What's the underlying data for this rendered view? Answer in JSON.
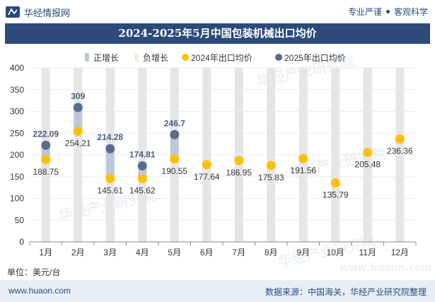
{
  "header": {
    "brand": "华经情报网",
    "tagline_left": "专业严谨",
    "tagline_right": "客观科学"
  },
  "watermark": {
    "text": "华经产业研究院",
    "url": "www.huaon.com"
  },
  "chart_data": {
    "type": "scatter",
    "title": "2024-2025年5月中国包装机械出口均价",
    "unit_label": "单位：美元/台",
    "categories": [
      "1月",
      "2月",
      "3月",
      "4月",
      "5月",
      "6月",
      "7月",
      "8月",
      "9月",
      "10月",
      "11月",
      "12月"
    ],
    "ylim": [
      0,
      400
    ],
    "yticks": [
      0,
      50,
      100,
      150,
      200,
      250,
      300,
      350,
      400
    ],
    "legend_position": "top-center",
    "legend": [
      "正增长",
      "负增长",
      "2024年出口均价",
      "2025年出口均价"
    ],
    "series": [
      {
        "name": "2024年出口均价",
        "values": [
          188.75,
          254.21,
          145.61,
          145.62,
          190.55,
          177.64,
          186.95,
          175.83,
          191.56,
          135.79,
          205.48,
          236.36
        ]
      },
      {
        "name": "2025年出口均价",
        "values": [
          222.09,
          309,
          214.28,
          174.81,
          246.7,
          null,
          null,
          null,
          null,
          null,
          null,
          null
        ]
      }
    ],
    "colors": {
      "series_2024": "#ffc000",
      "series_2025": "#5b6b8c",
      "positive_growth": "#bcc7d8",
      "negative_growth": "#f7efd9",
      "label_2025": "#4a5a7e",
      "column_band": "#e6e6e6"
    }
  },
  "footer": {
    "site": "www.huaon.com",
    "source": "数据来源：中国海关，华经产业研究院整理"
  }
}
